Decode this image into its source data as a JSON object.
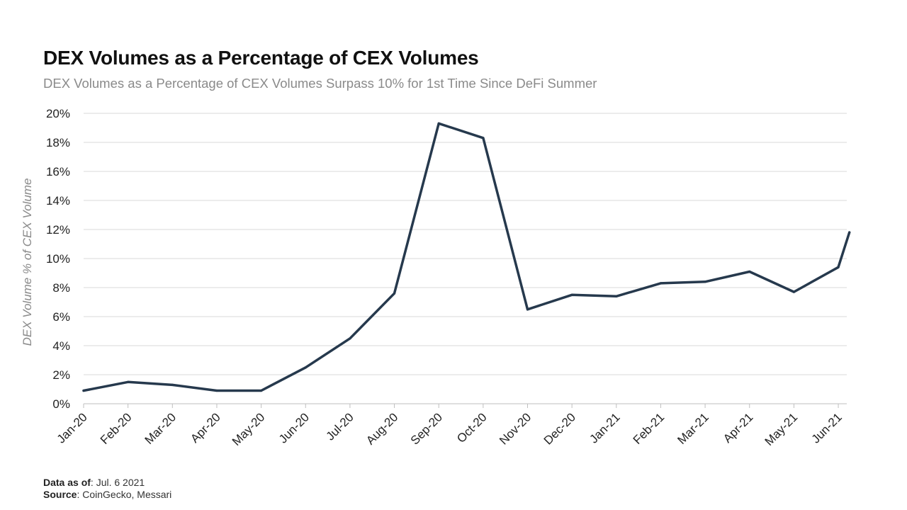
{
  "title": "DEX Volumes as a Percentage of CEX Volumes",
  "subtitle": "DEX Volumes as a Percentage of CEX Volumes Surpass 10% for 1st Time Since DeFi Summer",
  "footer": {
    "data_as_of_label": "Data as of",
    "data_as_of_value": ": Jul. 6 2021",
    "source_label": "Source",
    "source_value": ": CoinGecko, Messari"
  },
  "colors": {
    "line": "#26394d",
    "grid": "#d9d9d9",
    "axis": "#bfbfbf",
    "text": "#222222",
    "ylabel": "#8a8a8a"
  },
  "chart_data": {
    "type": "line",
    "title": "DEX Volumes as a Percentage of CEX Volumes",
    "xlabel": "",
    "ylabel": "DEX Volume % of CEX Volume",
    "ylim": [
      0,
      20
    ],
    "yticks": [
      "0%",
      "2%",
      "4%",
      "6%",
      "8%",
      "10%",
      "12%",
      "14%",
      "16%",
      "18%",
      "20%"
    ],
    "categories": [
      "Jan-20",
      "Feb-20",
      "Mar-20",
      "Apr-20",
      "May-20",
      "Jun-20",
      "Jul-20",
      "Aug-20",
      "Sep-20",
      "Oct-20",
      "Nov-20",
      "Dec-20",
      "Jan-21",
      "Feb-21",
      "Mar-21",
      "Apr-21",
      "May-21",
      "Jun-21"
    ],
    "series": [
      {
        "name": "DEX Volume % of CEX Volume",
        "x": [
          0,
          1,
          2,
          3,
          4,
          5,
          6,
          7,
          8,
          9,
          10,
          11,
          12,
          13,
          14,
          15,
          16,
          17,
          17.25
        ],
        "values": [
          0.9,
          1.5,
          1.3,
          0.9,
          0.9,
          2.5,
          4.5,
          7.6,
          19.3,
          18.3,
          6.5,
          7.5,
          7.4,
          8.3,
          8.4,
          9.1,
          7.7,
          9.4,
          11.8
        ]
      }
    ],
    "grid": true
  }
}
